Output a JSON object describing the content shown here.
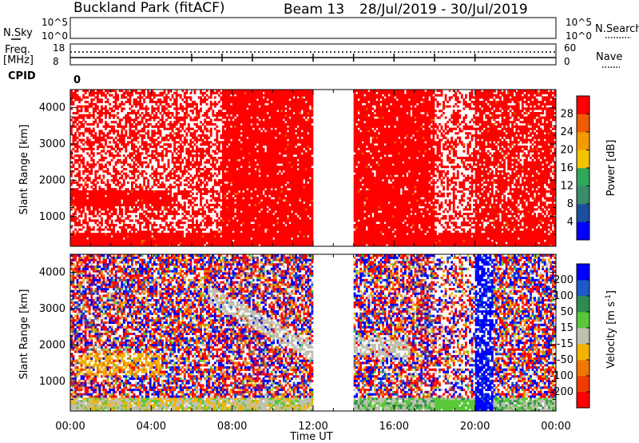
{
  "header": {
    "site": "Buckland Park (fitACF)",
    "beam": "Beam 13",
    "dates": "28/Jul/2019 - 30/Jul/2019"
  },
  "top_panels": {
    "nsky_label": "N.Sky",
    "nsky_ticks": [
      "10^5",
      "10^0"
    ],
    "nsearch_label": "N.Search",
    "nsearch_ticks": [
      "10^5",
      "10^0"
    ],
    "freq_label_1": "Freq.",
    "freq_label_2": "[MHz]",
    "freq_ticks": [
      "18",
      "8"
    ],
    "nave_label": "Nave",
    "nave_ticks": [
      "60",
      "0"
    ],
    "cpid_label": "CPID",
    "cpid_value": "0"
  },
  "colors": {
    "power": [
      "#0000ff",
      "#1c4ea0",
      "#3a8c6a",
      "#2ea85a",
      "#f5c400",
      "#f39b00",
      "#f05a00",
      "#ff0000"
    ],
    "velocity": [
      "#0000ff",
      "#1c5ac8",
      "#2e8c50",
      "#58c838",
      "#c0c0b0",
      "#f2b400",
      "#f07800",
      "#f03c00",
      "#ff0000"
    ]
  },
  "chart_data": [
    {
      "type": "heatmap",
      "panel": "power",
      "ylabel": "Slant Range [km]",
      "xlabel": "",
      "x_ticks": [
        "00:00",
        "04:00",
        "08:00",
        "12:00",
        "16:00",
        "20:00",
        "00:00"
      ],
      "y_ticks": [
        1000,
        2000,
        3000,
        4000
      ],
      "ylim": [
        180,
        4500
      ],
      "xlim_hours": [
        0,
        24
      ],
      "colorbar_label": "Power [dB]",
      "colorbar_ticks": [
        4,
        8,
        12,
        16,
        20,
        24,
        28
      ],
      "data_gap_hours": [
        12.0,
        14.0
      ]
    },
    {
      "type": "heatmap",
      "panel": "velocity",
      "ylabel": "Slant Range [km]",
      "xlabel": "Time UT",
      "x_ticks": [
        "00:00",
        "04:00",
        "08:00",
        "12:00",
        "16:00",
        "20:00",
        "00:00"
      ],
      "y_ticks": [
        1000,
        2000,
        3000,
        4000
      ],
      "ylim": [
        180,
        4500
      ],
      "xlim_hours": [
        0,
        24
      ],
      "colorbar_label": "Velocity [m s^-1]",
      "colorbar_ticks": [
        200,
        100,
        50,
        15,
        -15,
        -50,
        -100,
        -200
      ],
      "data_gap_hours": [
        12.0,
        14.0
      ]
    }
  ]
}
